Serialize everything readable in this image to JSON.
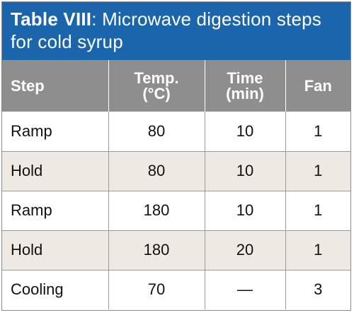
{
  "table": {
    "title_label": "Table VIII",
    "title_sep": ":",
    "title_text": " Microwave digestion steps for cold syrup",
    "headers": [
      {
        "line1": "Step",
        "line2": ""
      },
      {
        "line1": "Temp.",
        "line2": "(°C)"
      },
      {
        "line1": "Time",
        "line2": "(min)"
      },
      {
        "line1": "Fan",
        "line2": ""
      }
    ],
    "rows": [
      {
        "step": "Ramp",
        "temp": "80",
        "time": "10",
        "fan": "1"
      },
      {
        "step": "Hold",
        "temp": "80",
        "time": "10",
        "fan": "1"
      },
      {
        "step": "Ramp",
        "temp": "180",
        "time": "10",
        "fan": "1"
      },
      {
        "step": "Hold",
        "temp": "180",
        "time": "20",
        "fan": "1"
      },
      {
        "step": "Cooling",
        "temp": "70",
        "time": "—",
        "fan": "3"
      }
    ]
  },
  "colors": {
    "title_bg": "#1b65ad",
    "header_bg": "#8e8e8e",
    "alt_row_bg": "#efe9e3"
  }
}
